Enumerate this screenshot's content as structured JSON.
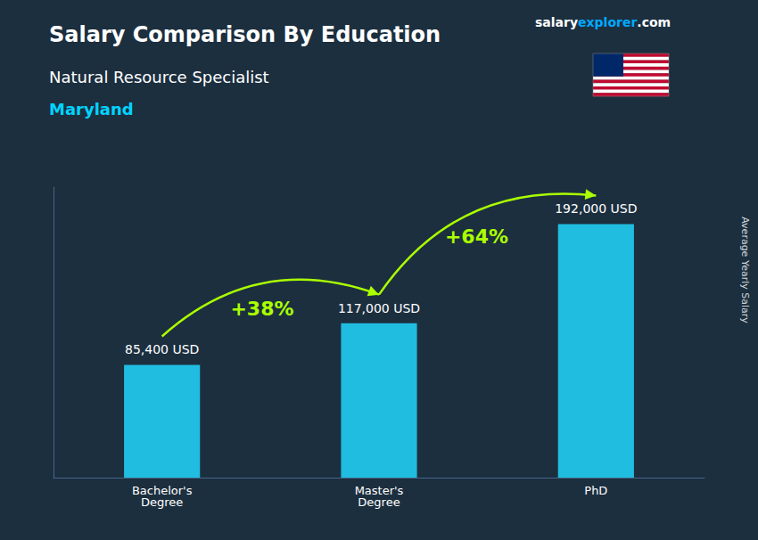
{
  "chart_data": {
    "type": "bar",
    "title": "Salary Comparison By Education",
    "subtitle": "Natural Resource Specialist",
    "annotations": {
      "location": "Maryland",
      "changes": [
        "+38%",
        "+64%"
      ],
      "brand": [
        "salary",
        "explorer",
        ".com"
      ]
    },
    "ylabel": "Average Yearly Salary",
    "categories": [
      "Bachelor's\nDegree",
      "Master's\nDegree",
      "PhD"
    ],
    "values": [
      85400,
      117000,
      192000
    ],
    "value_labels": [
      "85,400 USD",
      "117,000 USD",
      "192,000 USD"
    ],
    "data_labels": true,
    "color": "#20bde0",
    "ylim": [
      0,
      220000
    ],
    "tick_labels": "x",
    "grid": false
  }
}
